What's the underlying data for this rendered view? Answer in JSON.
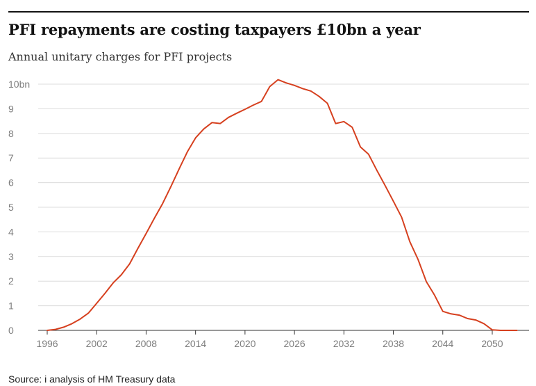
{
  "header": {
    "title": "PFI repayments are costing taxpayers £10bn a year",
    "subtitle": "Annual unitary charges for PFI projects"
  },
  "footer": {
    "source": "Source: i analysis of HM Treasury data"
  },
  "colors": {
    "line": "#d6401f",
    "grid": "#dcdcdc",
    "axis": "#333333",
    "text": "#121212"
  },
  "chart_data": {
    "type": "line",
    "title": "PFI repayments are costing taxpayers £10bn a year",
    "subtitle": "Annual unitary charges for PFI projects",
    "xlabel": "",
    "ylabel": "",
    "xlim": [
      1996,
      2053
    ],
    "ylim": [
      0,
      10
    ],
    "grid": true,
    "legend": "none",
    "y_ticks": [
      {
        "value": 0,
        "label": "0"
      },
      {
        "value": 1,
        "label": "1"
      },
      {
        "value": 2,
        "label": "2"
      },
      {
        "value": 3,
        "label": "3"
      },
      {
        "value": 4,
        "label": "4"
      },
      {
        "value": 5,
        "label": "5"
      },
      {
        "value": 6,
        "label": "6"
      },
      {
        "value": 7,
        "label": "7"
      },
      {
        "value": 8,
        "label": "8"
      },
      {
        "value": 9,
        "label": "9"
      },
      {
        "value": 10,
        "label": "10bn"
      }
    ],
    "x_ticks": [
      {
        "value": 1996,
        "label": "1996"
      },
      {
        "value": 2002,
        "label": "2002"
      },
      {
        "value": 2008,
        "label": "2008"
      },
      {
        "value": 2014,
        "label": "2014"
      },
      {
        "value": 2020,
        "label": "2020"
      },
      {
        "value": 2026,
        "label": "2026"
      },
      {
        "value": 2032,
        "label": "2032"
      },
      {
        "value": 2038,
        "label": "2038"
      },
      {
        "value": 2044,
        "label": "2044"
      },
      {
        "value": 2050,
        "label": "2050"
      }
    ],
    "series": [
      {
        "x": [
          1996,
          1997,
          1998,
          1999,
          2000,
          2001,
          2002,
          2003,
          2004,
          2005,
          2006,
          2007,
          2008,
          2009,
          2010,
          2011,
          2012,
          2013,
          2014,
          2015,
          2016,
          2017,
          2018,
          2019,
          2020,
          2021,
          2022,
          2023,
          2024,
          2025,
          2026,
          2027,
          2028,
          2029,
          2030,
          2031,
          2032,
          2033,
          2034,
          2035,
          2036,
          2037,
          2038,
          2039,
          2040,
          2041,
          2042,
          2043,
          2044,
          2045,
          2046,
          2047,
          2048,
          2049,
          2050,
          2051,
          2052,
          2053
        ],
        "values": [
          0.0,
          0.04,
          0.13,
          0.27,
          0.46,
          0.7,
          1.1,
          1.5,
          1.93,
          2.26,
          2.7,
          3.33,
          3.93,
          4.55,
          5.15,
          5.83,
          6.55,
          7.25,
          7.82,
          8.18,
          8.44,
          8.4,
          8.65,
          8.82,
          8.98,
          9.15,
          9.3,
          9.9,
          10.18,
          10.05,
          9.95,
          9.82,
          9.72,
          9.5,
          9.22,
          8.4,
          8.48,
          8.25,
          7.45,
          7.15,
          6.5,
          5.88,
          5.25,
          4.6,
          3.6,
          2.88,
          1.98,
          1.43,
          0.77,
          0.67,
          0.62,
          0.48,
          0.42,
          0.27,
          0.02,
          0.0,
          0.0,
          0.0
        ]
      }
    ]
  }
}
